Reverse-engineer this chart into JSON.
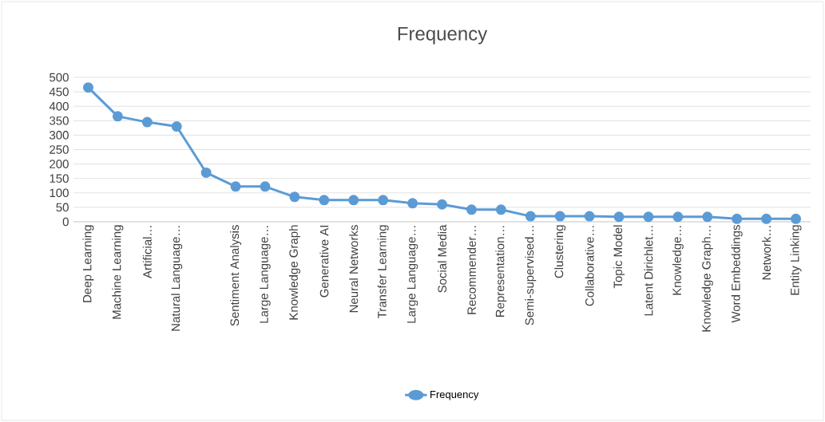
{
  "chart_data": {
    "type": "line",
    "title": "Frequency",
    "categories": [
      "Deep Learning",
      "Machine Learning",
      "Artificial…",
      "Natural Language…",
      null,
      "Sentiment Analysis",
      "Large Language…",
      "Knowledge Graph",
      "Generative AI",
      "Neural Networks",
      "Transfer Learning",
      "Large Language…",
      "Social Media",
      "Recommender…",
      "Representation…",
      "Semi-supervised…",
      "Clustering",
      "Collaborative…",
      "Topic Model",
      "Latent Dirichlet…",
      "Knowledge…",
      "Knowledge Graph…",
      "Word Embeddings",
      "Network…",
      "Entity Linking"
    ],
    "series": [
      {
        "name": "Frequency",
        "color": "#5b9bd5",
        "values": [
          465,
          365,
          345,
          330,
          170,
          122,
          122,
          86,
          75,
          75,
          75,
          64,
          60,
          42,
          42,
          19,
          19,
          19,
          17,
          17,
          17,
          17,
          10,
          10,
          10
        ]
      }
    ],
    "ylim": [
      0,
      500
    ],
    "yticks": [
      0,
      50,
      100,
      150,
      200,
      250,
      300,
      350,
      400,
      450,
      500
    ],
    "grid": "y",
    "legend": "bottom",
    "marker": "circle",
    "line_style": "solid"
  }
}
